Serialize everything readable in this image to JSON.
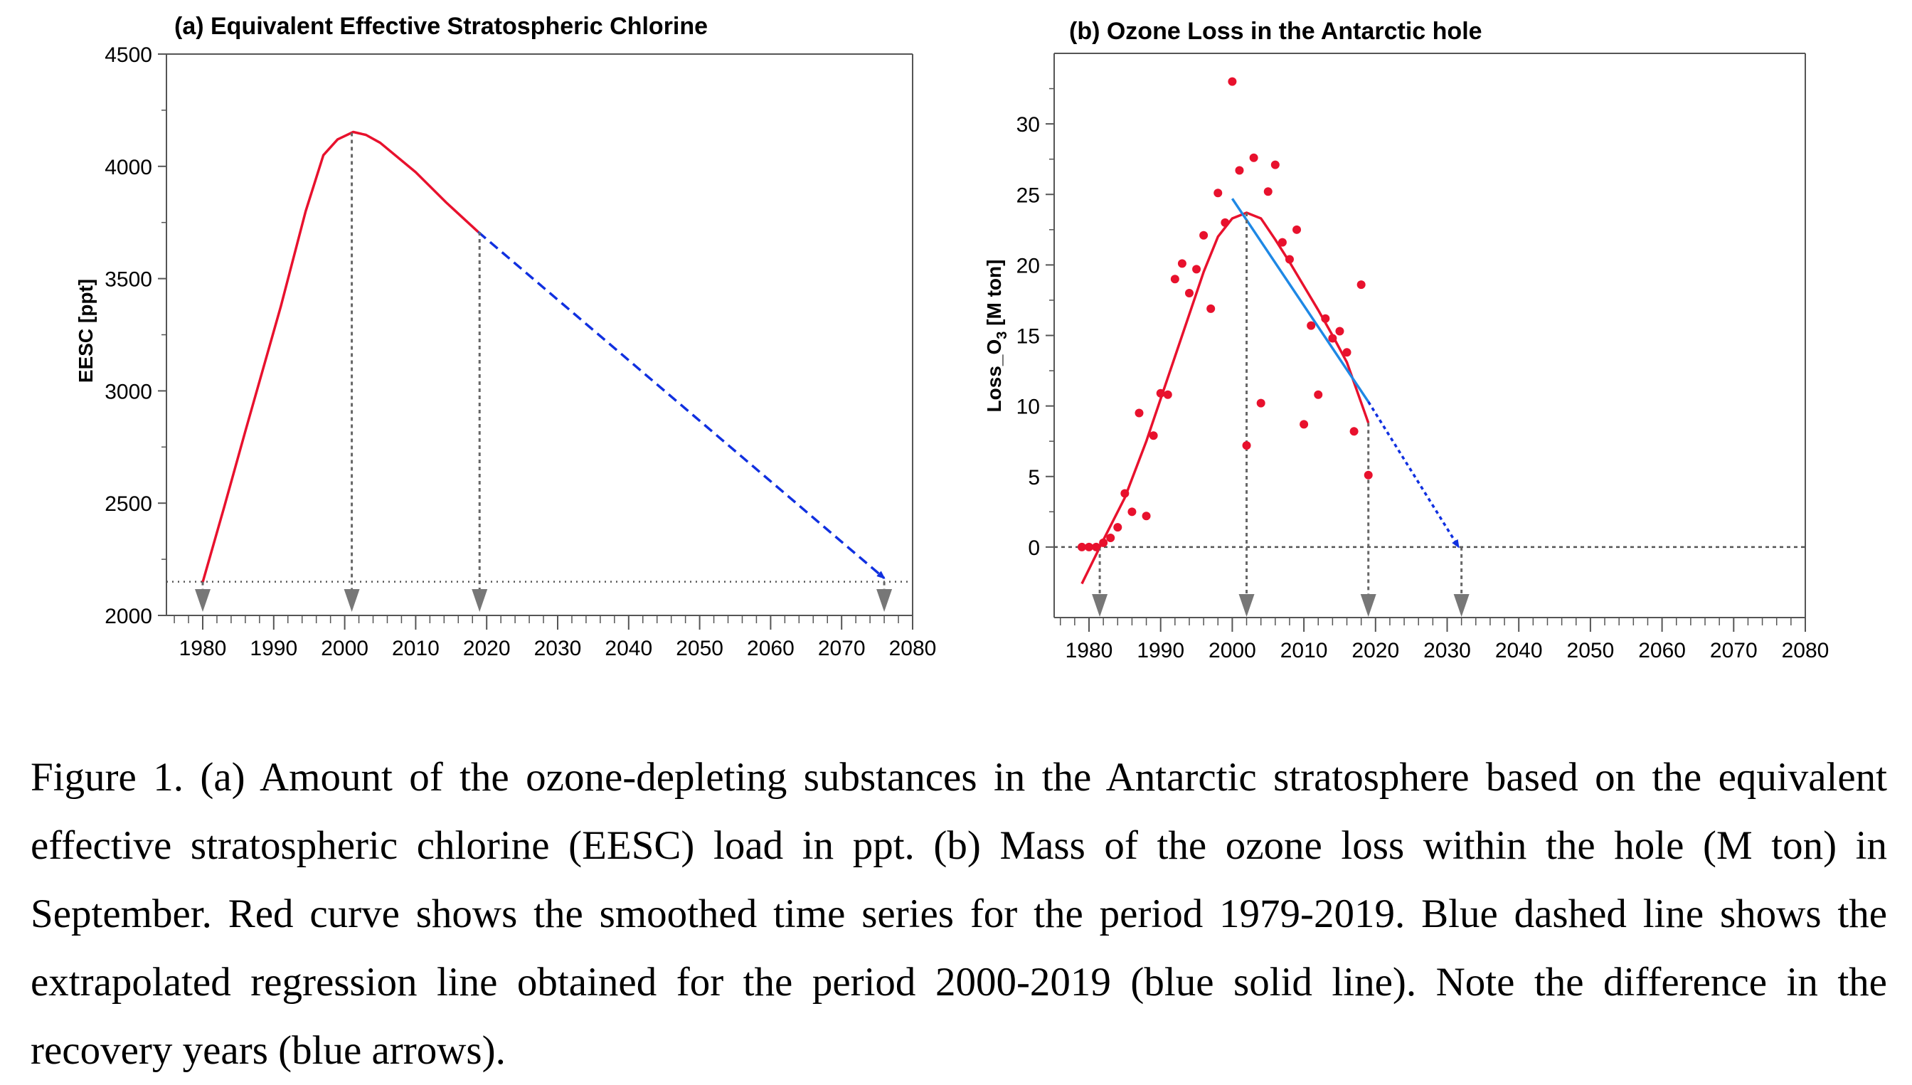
{
  "chart_data": [
    {
      "type": "line",
      "title": "(a) Equivalent Effective Stratospheric Chlorine",
      "xlabel": "",
      "ylabel": "EESC [ppt]",
      "xlim": [
        1975,
        2080
      ],
      "ylim": [
        2000,
        4500
      ],
      "xticks": [
        1980,
        1990,
        2000,
        2010,
        2020,
        2030,
        2040,
        2050,
        2060,
        2070,
        2080
      ],
      "yticks": [
        2000,
        2500,
        3000,
        3500,
        4000,
        4500
      ],
      "grid": false,
      "series": [
        {
          "name": "EESC",
          "color": "#e8112d",
          "style": "solid",
          "x": [
            1980,
            1983,
            1986,
            1991,
            1994.5,
            1997,
            1999,
            2001.2,
            2003,
            2005,
            2010,
            2014.3,
            2018.8
          ],
          "y": [
            2148,
            2480,
            2820,
            3376,
            3800,
            4050,
            4120,
            4153,
            4140,
            4105,
            3974,
            3839,
            3708
          ]
        },
        {
          "name": "EESC extrapolation",
          "color": "#1030e0",
          "style": "dashed-arrow",
          "x": [
            2018.8,
            2076
          ],
          "y": [
            3708,
            2166
          ]
        }
      ],
      "reference_level": 2150,
      "marker_years": [
        1980,
        2001,
        2019,
        2076
      ]
    },
    {
      "type": "scatter",
      "title": "(b) Ozone Loss in the Antarctic hole",
      "xlabel": "",
      "ylabel_main": "Loss_O",
      "ylabel_sub": "3",
      "ylabel_tail": " [M ton]",
      "xlim": [
        1975,
        2080
      ],
      "ylim": [
        -5,
        35
      ],
      "xticks": [
        1980,
        1990,
        2000,
        2010,
        2020,
        2030,
        2040,
        2050,
        2060,
        2070,
        2080
      ],
      "yticks": [
        0,
        5,
        10,
        15,
        20,
        25,
        30
      ],
      "grid": false,
      "points": {
        "color": "#e8112d",
        "x": [
          1979,
          1980,
          1981,
          1982,
          1983,
          1984,
          1985,
          1986,
          1987,
          1988,
          1989,
          1990,
          1991,
          1992,
          1993,
          1994,
          1995,
          1996,
          1997,
          1998,
          1999,
          2000,
          2001,
          2002,
          2003,
          2004,
          2005,
          2006,
          2007,
          2008,
          2009,
          2010,
          2011,
          2012,
          2013,
          2014,
          2015,
          2016,
          2017,
          2018,
          2019
        ],
        "y": [
          0,
          0,
          0,
          0.3,
          0.65,
          1.4,
          3.8,
          2.5,
          9.5,
          2.2,
          7.9,
          10.9,
          10.8,
          19,
          20.1,
          18,
          19.7,
          22.1,
          16.9,
          25.1,
          23,
          33,
          26.7,
          7.2,
          27.6,
          10.2,
          25.2,
          27.1,
          21.6,
          20.4,
          22.5,
          8.7,
          15.7,
          10.8,
          16.2,
          14.8,
          15.3,
          13.8,
          8.2,
          18.6,
          5.1
        ]
      },
      "series": [
        {
          "name": "Smoothed 1979-2019",
          "color": "#e8112d",
          "style": "solid",
          "x": [
            1979,
            1982,
            1985,
            1988,
            1991,
            1994,
            1996,
            1998,
            2000,
            2002,
            2004,
            2006,
            2008,
            2010,
            2012,
            2014,
            2016,
            2019
          ],
          "y": [
            -2.6,
            0.5,
            3.5,
            7.5,
            12,
            16.5,
            19.5,
            22,
            23.3,
            23.7,
            23.3,
            21.8,
            20.2,
            18.5,
            16.8,
            15,
            13.1,
            8.8
          ]
        },
        {
          "name": "Regression 2000-2019",
          "color": "#1e88e5",
          "style": "solid",
          "x": [
            2000,
            2019
          ],
          "y": [
            24.7,
            10.3
          ]
        },
        {
          "name": "Extrapolated regression",
          "color": "#1030e0",
          "style": "dotted-arrow",
          "x": [
            2019,
            2031.6
          ],
          "y": [
            10.3,
            0
          ]
        }
      ],
      "reference_level": 0,
      "marker_years": [
        1981.5,
        2002,
        2019,
        2032
      ]
    }
  ],
  "caption": "Figure 1. (a) Amount of the ozone-depleting substances in the Antarctic stratosphere based on the equivalent effective stratospheric chlorine (EESC) load in ppt. (b) Mass of the ozone loss within the hole (M ton) in September. Red curve shows the smoothed time series for the period 1979-2019. Blue dashed line shows the extrapolated regression line obtained for the period 2000-2019 (blue solid line). Note the difference in the recovery years (blue arrows)."
}
